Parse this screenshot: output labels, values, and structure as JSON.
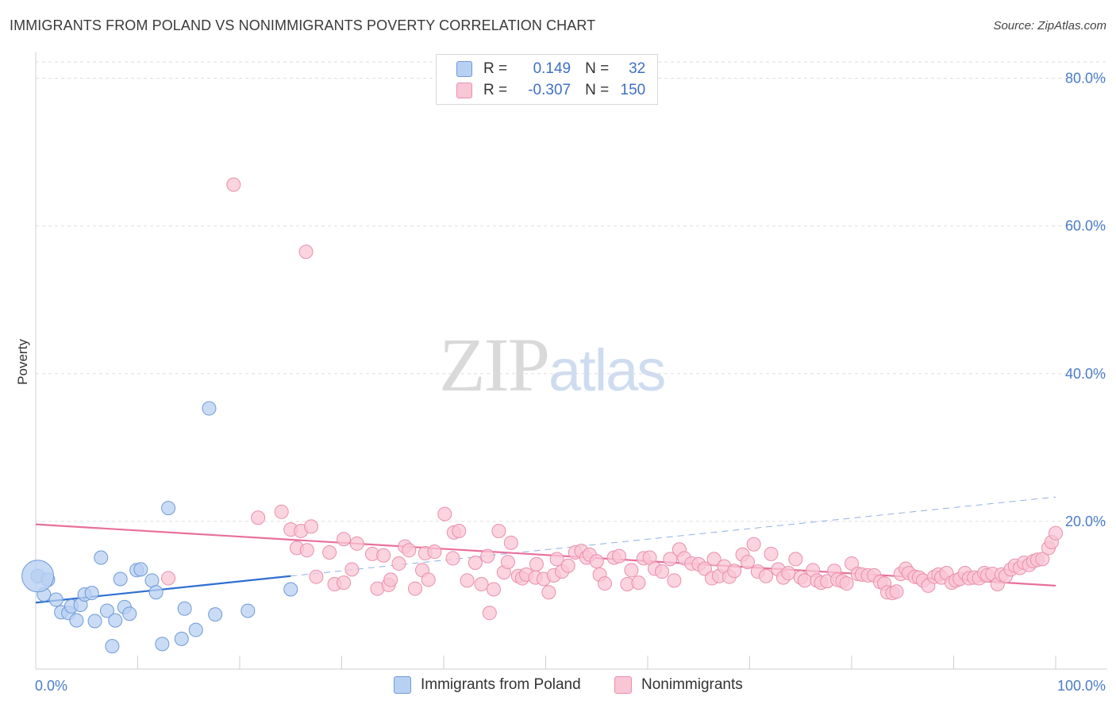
{
  "title": "IMMIGRANTS FROM POLAND VS NONIMMIGRANTS POVERTY CORRELATION CHART",
  "source": "Source: ZipAtlas.com",
  "watermark": {
    "part1": "ZIP",
    "part2": "atlas"
  },
  "legend": {
    "rows": [
      {
        "r_label": "R =",
        "r_value": "0.149",
        "n_label": "N =",
        "n_value": "32"
      },
      {
        "r_label": "R =",
        "r_value": "-0.307",
        "n_label": "N =",
        "n_value": "150"
      }
    ]
  },
  "colors": {
    "blue_fill": "#b8d0f2",
    "blue_stroke": "#6f9ad8",
    "blue_line": "#2f6fd0",
    "pink_fill": "#f9c6d6",
    "pink_stroke": "#ea8fab",
    "pink_line": "#e8709a",
    "grid": "#dddddd",
    "axis_text": "#4a7cc9"
  },
  "chart_data": {
    "type": "scatter",
    "xlabel": "",
    "ylabel": "Poverty",
    "xlim": [
      0,
      100
    ],
    "ylim": [
      0,
      82
    ],
    "x_tick_labels": [
      "0.0%",
      "100.0%"
    ],
    "y_ticks": [
      20,
      40,
      60,
      80
    ],
    "y_tick_labels": [
      "20.0%",
      "40.0%",
      "60.0%",
      "80.0%"
    ],
    "series": [
      {
        "name": "Immigrants from Poland",
        "r": 0.149,
        "n": 32,
        "trend": {
          "x0": 0,
          "y0": 9.0,
          "x1": 25,
          "y1": 12.6,
          "dash_x1": 100,
          "dash_y1": 23.3
        },
        "points": [
          [
            0.2,
            12.6
          ],
          [
            1.2,
            12.1
          ],
          [
            0.8,
            10.1
          ],
          [
            2.0,
            9.4
          ],
          [
            2.5,
            7.7
          ],
          [
            3.2,
            7.6
          ],
          [
            3.5,
            8.5
          ],
          [
            4.0,
            6.6
          ],
          [
            4.4,
            8.7
          ],
          [
            4.8,
            10.1
          ],
          [
            5.5,
            10.3
          ],
          [
            5.8,
            6.5
          ],
          [
            6.4,
            15.1
          ],
          [
            7.0,
            7.9
          ],
          [
            7.5,
            3.1
          ],
          [
            7.8,
            6.6
          ],
          [
            8.3,
            12.2
          ],
          [
            8.7,
            8.4
          ],
          [
            9.2,
            7.5
          ],
          [
            9.9,
            13.4
          ],
          [
            10.3,
            13.5
          ],
          [
            11.4,
            12.0
          ],
          [
            11.8,
            10.4
          ],
          [
            12.4,
            3.4
          ],
          [
            13.0,
            21.8
          ],
          [
            14.3,
            4.1
          ],
          [
            14.6,
            8.2
          ],
          [
            15.7,
            5.3
          ],
          [
            17.0,
            35.3
          ],
          [
            17.6,
            7.4
          ],
          [
            20.8,
            7.9
          ],
          [
            25.0,
            10.8
          ]
        ]
      },
      {
        "name": "Nonimmigrants",
        "r": -0.307,
        "n": 150,
        "trend": {
          "x0": 0,
          "y0": 19.6,
          "x1": 100,
          "y1": 11.3
        },
        "points": [
          [
            19.4,
            65.6
          ],
          [
            26.5,
            56.5
          ],
          [
            13.0,
            12.3
          ],
          [
            21.8,
            20.5
          ],
          [
            24.1,
            21.3
          ],
          [
            25.0,
            18.9
          ],
          [
            25.6,
            16.4
          ],
          [
            26.0,
            18.7
          ],
          [
            26.6,
            16.1
          ],
          [
            27.0,
            19.3
          ],
          [
            27.5,
            12.5
          ],
          [
            28.8,
            15.8
          ],
          [
            29.3,
            11.5
          ],
          [
            30.2,
            11.7
          ],
          [
            30.2,
            17.6
          ],
          [
            31.0,
            13.5
          ],
          [
            31.5,
            17.0
          ],
          [
            33.0,
            15.6
          ],
          [
            33.5,
            10.9
          ],
          [
            34.1,
            15.4
          ],
          [
            34.6,
            11.4
          ],
          [
            34.8,
            12.1
          ],
          [
            35.6,
            14.3
          ],
          [
            36.2,
            16.6
          ],
          [
            36.6,
            16.1
          ],
          [
            37.2,
            10.9
          ],
          [
            37.9,
            13.4
          ],
          [
            38.2,
            15.7
          ],
          [
            38.5,
            12.1
          ],
          [
            39.1,
            15.9
          ],
          [
            40.1,
            21.0
          ],
          [
            40.9,
            15.0
          ],
          [
            41.0,
            18.5
          ],
          [
            41.5,
            18.7
          ],
          [
            42.3,
            12.0
          ],
          [
            43.1,
            14.4
          ],
          [
            43.7,
            11.5
          ],
          [
            44.3,
            15.3
          ],
          [
            44.5,
            7.6
          ],
          [
            44.9,
            10.8
          ],
          [
            45.4,
            18.7
          ],
          [
            45.9,
            13.1
          ],
          [
            46.3,
            14.5
          ],
          [
            46.6,
            17.1
          ],
          [
            47.3,
            12.6
          ],
          [
            47.7,
            12.3
          ],
          [
            48.1,
            12.8
          ],
          [
            49.0,
            12.4
          ],
          [
            49.1,
            14.2
          ],
          [
            49.8,
            12.2
          ],
          [
            50.3,
            10.4
          ],
          [
            50.8,
            12.7
          ],
          [
            51.1,
            14.9
          ],
          [
            51.6,
            13.2
          ],
          [
            52.2,
            14.0
          ],
          [
            52.9,
            15.8
          ],
          [
            53.5,
            16.0
          ],
          [
            54.0,
            15.1
          ],
          [
            54.3,
            15.5
          ],
          [
            55.0,
            14.6
          ],
          [
            55.3,
            12.8
          ],
          [
            55.8,
            11.6
          ],
          [
            56.7,
            15.1
          ],
          [
            57.2,
            15.3
          ],
          [
            58.0,
            11.5
          ],
          [
            58.4,
            13.4
          ],
          [
            59.1,
            11.7
          ],
          [
            59.6,
            15.0
          ],
          [
            60.2,
            15.1
          ],
          [
            60.7,
            13.6
          ],
          [
            61.4,
            13.2
          ],
          [
            62.2,
            14.9
          ],
          [
            62.6,
            12.0
          ],
          [
            63.1,
            16.2
          ],
          [
            63.6,
            15.0
          ],
          [
            64.3,
            14.3
          ],
          [
            65.0,
            14.2
          ],
          [
            65.6,
            13.6
          ],
          [
            66.3,
            12.3
          ],
          [
            66.5,
            14.9
          ],
          [
            67.0,
            12.6
          ],
          [
            67.5,
            13.9
          ],
          [
            68.0,
            12.5
          ],
          [
            68.5,
            13.3
          ],
          [
            69.3,
            15.5
          ],
          [
            69.8,
            14.5
          ],
          [
            70.4,
            16.9
          ],
          [
            70.8,
            13.2
          ],
          [
            71.6,
            12.6
          ],
          [
            72.1,
            15.6
          ],
          [
            72.8,
            13.5
          ],
          [
            73.3,
            12.4
          ],
          [
            73.8,
            13.0
          ],
          [
            74.5,
            14.9
          ],
          [
            75.0,
            12.4
          ],
          [
            75.4,
            12.0
          ],
          [
            76.2,
            13.4
          ],
          [
            76.6,
            12.0
          ],
          [
            77.0,
            11.7
          ],
          [
            77.6,
            11.9
          ],
          [
            78.3,
            13.3
          ],
          [
            78.6,
            12.1
          ],
          [
            79.1,
            11.9
          ],
          [
            79.5,
            11.6
          ],
          [
            80.0,
            14.3
          ],
          [
            80.6,
            12.9
          ],
          [
            81.0,
            12.8
          ],
          [
            81.6,
            12.7
          ],
          [
            82.2,
            12.7
          ],
          [
            82.8,
            11.8
          ],
          [
            83.2,
            11.6
          ],
          [
            83.5,
            10.4
          ],
          [
            84.0,
            10.3
          ],
          [
            84.4,
            10.5
          ],
          [
            84.8,
            12.9
          ],
          [
            85.3,
            13.6
          ],
          [
            85.6,
            13.0
          ],
          [
            86.2,
            12.5
          ],
          [
            86.6,
            12.4
          ],
          [
            87.0,
            12.0
          ],
          [
            87.5,
            11.3
          ],
          [
            88.1,
            12.5
          ],
          [
            88.5,
            12.8
          ],
          [
            88.8,
            12.4
          ],
          [
            89.3,
            13.0
          ],
          [
            89.8,
            11.7
          ],
          [
            90.2,
            12.0
          ],
          [
            90.6,
            12.2
          ],
          [
            91.1,
            13.0
          ],
          [
            91.5,
            12.3
          ],
          [
            92.0,
            12.4
          ],
          [
            92.5,
            12.3
          ],
          [
            93.0,
            13.0
          ],
          [
            93.3,
            12.7
          ],
          [
            93.8,
            12.9
          ],
          [
            94.3,
            11.5
          ],
          [
            94.7,
            12.8
          ],
          [
            95.1,
            12.6
          ],
          [
            95.6,
            13.5
          ],
          [
            96.0,
            14.0
          ],
          [
            96.5,
            13.7
          ],
          [
            96.9,
            14.4
          ],
          [
            97.4,
            14.1
          ],
          [
            97.8,
            14.6
          ],
          [
            98.2,
            14.8
          ],
          [
            98.7,
            14.9
          ],
          [
            99.3,
            16.4
          ],
          [
            99.6,
            17.2
          ],
          [
            100.0,
            18.4
          ]
        ]
      }
    ],
    "bottom_legend": [
      "Immigrants from Poland",
      "Nonimmigrants"
    ],
    "large_point": {
      "series": "Immigrants from Poland",
      "x": 0.2,
      "y": 12.6
    }
  }
}
